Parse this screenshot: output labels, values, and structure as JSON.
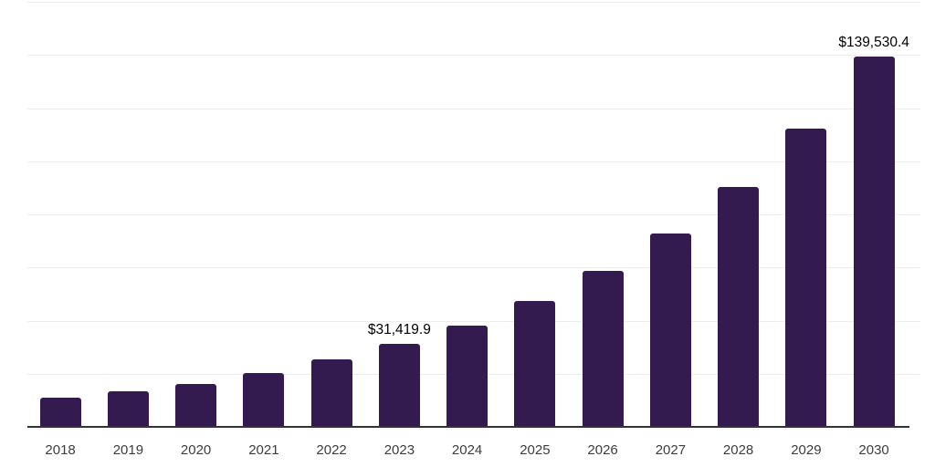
{
  "chart_data": {
    "type": "bar",
    "title": "",
    "xlabel": "",
    "ylabel": "",
    "categories": [
      "2018",
      "2019",
      "2020",
      "2021",
      "2022",
      "2023",
      "2024",
      "2025",
      "2026",
      "2027",
      "2028",
      "2029",
      "2030"
    ],
    "values": [
      11160,
      13460,
      16310,
      20430,
      25340,
      31419.9,
      38180,
      47560,
      58780,
      72960,
      90230,
      112210,
      139530.4
    ],
    "ylim": [
      0,
      160000
    ],
    "gridline_step": 20000,
    "grid": "horizontal-light",
    "legend": "none",
    "bar_color": "#341b4f",
    "axis_line_color": "#333333",
    "gridline_color": "#ededed",
    "label_color": "#000000",
    "tick_label_color": "#3d3d3d",
    "data_labels": [
      {
        "category_index": 5,
        "text": "$31,419.9"
      },
      {
        "category_index": 12,
        "text": "$139,530.4"
      }
    ]
  }
}
